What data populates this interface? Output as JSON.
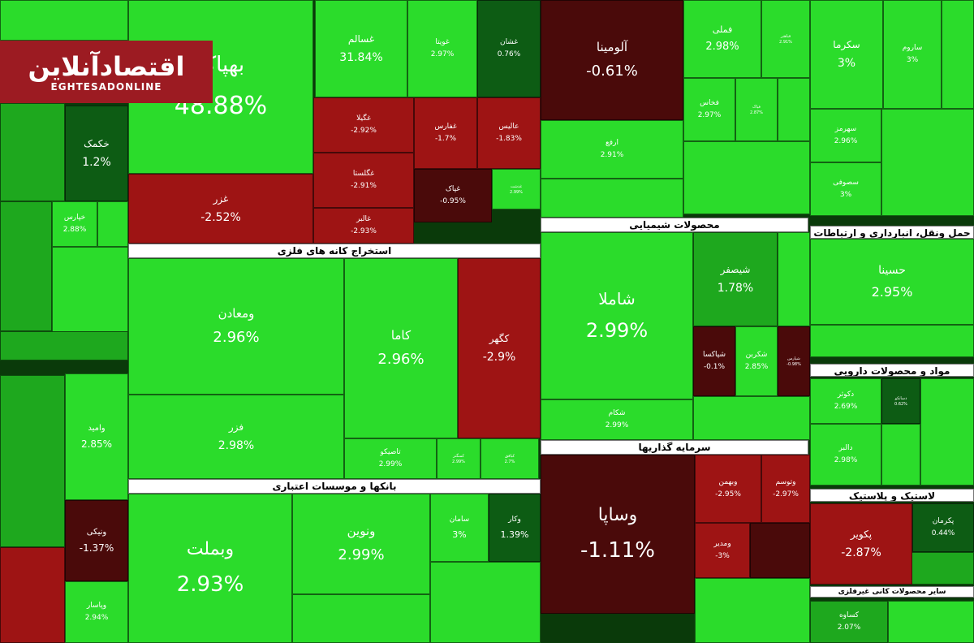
{
  "logo": {
    "title_fa": "اقتصادآنلاین",
    "title_en": "EGHTESADONLINE"
  },
  "sectors": [
    "استخراج کانه های فلزی",
    "بانکها و موسسات اعتباری",
    "محصولات شیمیایی",
    "سرمایه گذاریها",
    "حمل ونقل، انبارداری و ارتباطات",
    "مواد و محصولات دارویی",
    "لاستیک و پلاستیک",
    "سایر محصولات کانی غیرفلزی"
  ],
  "chart_data": {
    "type": "treemap",
    "metric": "daily price change (%)",
    "items": [
      {
        "name": "بهپاک",
        "change": 48.88
      },
      {
        "name": "غسالم",
        "change": 31.84
      },
      {
        "name": "غویتا",
        "change": 2.97
      },
      {
        "name": "غشان",
        "change": 0.76
      },
      {
        "name": "غگیلا",
        "change": -2.92
      },
      {
        "name": "غفارس",
        "change": -1.7
      },
      {
        "name": "عالیس",
        "change": -1.83
      },
      {
        "name": "غگلستا",
        "change": -2.91
      },
      {
        "name": "غپاک",
        "change": -0.95
      },
      {
        "name": "غدشت",
        "change": 2.99
      },
      {
        "name": "غزر",
        "change": -2.52
      },
      {
        "name": "غالبر",
        "change": -2.93
      },
      {
        "name": "آلومینا",
        "change": -0.61
      },
      {
        "name": "فملی",
        "change": 2.98
      },
      {
        "name": "فباهنر",
        "change": 2.91
      },
      {
        "name": "سکرما",
        "change": 3
      },
      {
        "name": "ساروم",
        "change": 3
      },
      {
        "name": "ارفع",
        "change": 2.91
      },
      {
        "name": "فخاس",
        "change": 2.97
      },
      {
        "name": "فپاک",
        "change": 2.87
      },
      {
        "name": "سهرمز",
        "change": 2.96
      },
      {
        "name": "سصوفی",
        "change": 3
      },
      {
        "name": "ومعادن",
        "change": 2.96
      },
      {
        "name": "کاما",
        "change": 2.96
      },
      {
        "name": "کگهر",
        "change": -2.9
      },
      {
        "name": "فزر",
        "change": 2.98
      },
      {
        "name": "تاصیکو",
        "change": 2.99
      },
      {
        "name": "کمنگنز",
        "change": 2.99
      },
      {
        "name": "کبافق",
        "change": 2.7
      },
      {
        "name": "شاملا",
        "change": 2.99
      },
      {
        "name": "شیصفر",
        "change": 1.78
      },
      {
        "name": "شپاکسا",
        "change": -0.1
      },
      {
        "name": "شکربن",
        "change": 2.85
      },
      {
        "name": "شپارس",
        "change": -0.98
      },
      {
        "name": "شکام",
        "change": 2.99
      },
      {
        "name": "حسینا",
        "change": 2.95
      },
      {
        "name": "دکوثر",
        "change": 2.69
      },
      {
        "name": "دالبر",
        "change": 2.98
      },
      {
        "name": "دسانکو",
        "change": 0.62
      },
      {
        "name": "وامید",
        "change": 2.85
      },
      {
        "name": "ونیکی",
        "change": -1.37
      },
      {
        "name": "وپاسار",
        "change": 2.94
      },
      {
        "name": "وبملت",
        "change": 2.93
      },
      {
        "name": "ونوین",
        "change": 2.99
      },
      {
        "name": "سامان",
        "change": 3
      },
      {
        "name": "وکار",
        "change": 1.39
      },
      {
        "name": "وساپا",
        "change": -1.11
      },
      {
        "name": "وبهمن",
        "change": -2.95
      },
      {
        "name": "وتوسم",
        "change": -2.97
      },
      {
        "name": "ومدیر",
        "change": -3
      },
      {
        "name": "پکویر",
        "change": -2.87
      },
      {
        "name": "پکرمان",
        "change": 0.44
      },
      {
        "name": "کساوه",
        "change": 2.07
      },
      {
        "name": "خپارس",
        "change": 2.88
      },
      {
        "name": "خکمک",
        "change": 1.2
      }
    ]
  },
  "colors": {
    "up_bright": "#2bdc2b",
    "up": "#1ea81e",
    "up_dark": "#0d5c14",
    "down_bright": "#c8161a",
    "down": "#9e1414",
    "down_dark": "#4a0a0a"
  }
}
